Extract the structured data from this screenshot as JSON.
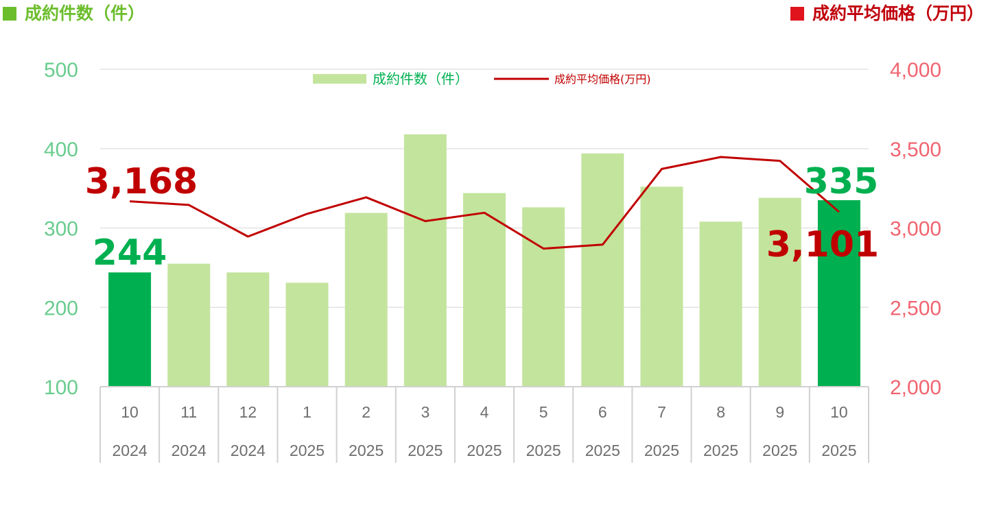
{
  "header": {
    "left_title": "成約件数（件）",
    "right_title": "成約平均価格（万円）",
    "left_color": "#6bbd2c",
    "right_color": "#c0000b"
  },
  "chart_data": {
    "type": "bar",
    "categories": [
      {
        "month": "10",
        "year": "2024"
      },
      {
        "month": "11",
        "year": "2024"
      },
      {
        "month": "12",
        "year": "2024"
      },
      {
        "month": "1",
        "year": "2025"
      },
      {
        "month": "2",
        "year": "2025"
      },
      {
        "month": "3",
        "year": "2025"
      },
      {
        "month": "4",
        "year": "2025"
      },
      {
        "month": "5",
        "year": "2025"
      },
      {
        "month": "6",
        "year": "2025"
      },
      {
        "month": "7",
        "year": "2025"
      },
      {
        "month": "8",
        "year": "2025"
      },
      {
        "month": "9",
        "year": "2025"
      },
      {
        "month": "10",
        "year": "2025"
      }
    ],
    "series": [
      {
        "name": "成約件数（件）",
        "type": "bar",
        "axis": "left",
        "values": [
          244,
          255,
          244,
          231,
          319,
          418,
          344,
          326,
          394,
          352,
          308,
          338,
          335
        ],
        "color": "#c3e49d",
        "highlight_color": "#00b050",
        "highlight_indices": [
          0,
          12
        ]
      },
      {
        "name": "成約平均価格(万円)",
        "type": "line",
        "axis": "right",
        "values": [
          3168,
          3145,
          2946,
          3089,
          3193,
          3043,
          3096,
          2870,
          2895,
          3372,
          3447,
          3423,
          3101
        ],
        "color": "#c00000"
      }
    ],
    "y_left": {
      "min": 100,
      "max": 500,
      "ticks": [
        "500",
        "400",
        "300",
        "200",
        "100"
      ],
      "tick_values": [
        500,
        400,
        300,
        200,
        100
      ],
      "color": "#69cc8e"
    },
    "y_right": {
      "min": 2000,
      "max": 4000,
      "ticks": [
        "4,000",
        "3,500",
        "3,000",
        "2,500",
        "2,000"
      ],
      "tick_values": [
        4000,
        3500,
        3000,
        2500,
        2000
      ],
      "color": "#f06470"
    },
    "data_labels": {
      "bar_first": "244",
      "bar_last": "335",
      "line_first": "3,168",
      "line_last": "3,101",
      "bar_color": "#00b050",
      "line_color": "#c00000"
    },
    "legend": {
      "position": "top-center",
      "bar_label": "成約件数（件）",
      "line_label": "成約平均価格(万円)",
      "bar_label_color": "#00b050",
      "line_label_color": "#c00000"
    },
    "grid": true
  }
}
